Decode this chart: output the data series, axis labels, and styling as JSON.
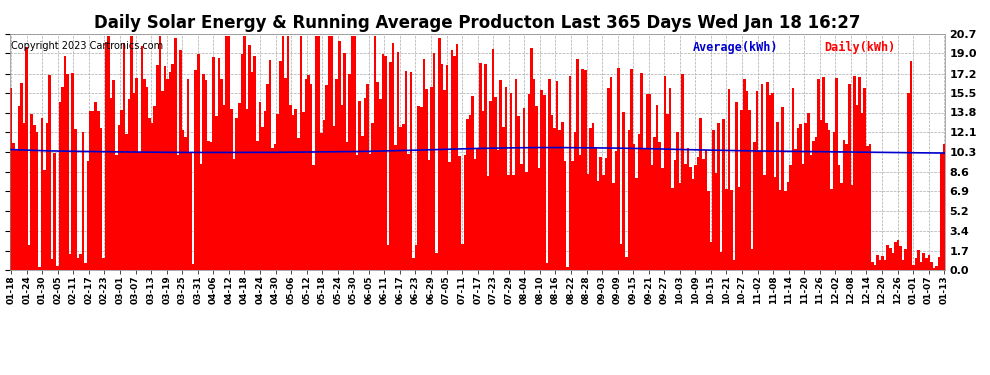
{
  "title": "Daily Solar Energy & Running Average Producton Last 365 Days Wed Jan 18 16:27",
  "copyright": "Copyright 2023 Cartronics.com",
  "ylabel_right_ticks": [
    0.0,
    1.7,
    3.4,
    5.2,
    6.9,
    8.6,
    10.3,
    12.1,
    13.8,
    15.5,
    17.2,
    19.0,
    20.7
  ],
  "ymax": 20.7,
  "ymin": 0.0,
  "bar_color": "#ff0000",
  "avg_color": "#0000cc",
  "bg_color": "#ffffff",
  "title_fontsize": 12,
  "copyright_fontsize": 7,
  "legend_avg_label": "Average(kWh)",
  "legend_daily_label": "Daily(kWh)",
  "num_days": 365,
  "x_tick_labels": [
    "01-18",
    "01-24",
    "01-30",
    "02-05",
    "02-11",
    "02-17",
    "02-23",
    "03-01",
    "03-07",
    "03-13",
    "03-19",
    "03-25",
    "03-31",
    "04-06",
    "04-12",
    "04-18",
    "04-24",
    "04-30",
    "05-06",
    "05-12",
    "05-18",
    "05-24",
    "05-30",
    "06-05",
    "06-11",
    "06-17",
    "06-23",
    "06-29",
    "07-05",
    "07-11",
    "07-17",
    "07-23",
    "07-29",
    "08-04",
    "08-10",
    "08-16",
    "08-22",
    "08-28",
    "09-03",
    "09-09",
    "09-15",
    "09-21",
    "09-27",
    "10-03",
    "10-09",
    "10-15",
    "10-21",
    "10-27",
    "11-02",
    "11-08",
    "11-14",
    "11-20",
    "11-26",
    "12-02",
    "12-08",
    "12-14",
    "12-20",
    "12-26",
    "01-01",
    "01-07",
    "01-13"
  ],
  "running_avg_points": [
    10.55,
    10.5,
    10.45,
    10.42,
    10.4,
    10.38,
    10.36,
    10.35,
    10.33,
    10.32,
    10.31,
    10.31,
    10.3,
    10.3,
    10.3,
    10.3,
    10.3,
    10.31,
    10.32,
    10.33,
    10.35,
    10.37,
    10.38,
    10.4,
    10.43,
    10.46,
    10.5,
    10.54,
    10.58,
    10.62,
    10.65,
    10.68,
    10.7,
    10.72,
    10.73,
    10.73,
    10.72,
    10.71,
    10.7,
    10.68,
    10.66,
    10.63,
    10.6,
    10.56,
    10.53,
    10.5,
    10.48,
    10.45,
    10.43,
    10.41,
    10.4,
    10.38,
    10.37,
    10.35,
    10.33,
    10.31,
    10.3,
    10.28,
    10.27,
    10.26,
    10.25
  ]
}
